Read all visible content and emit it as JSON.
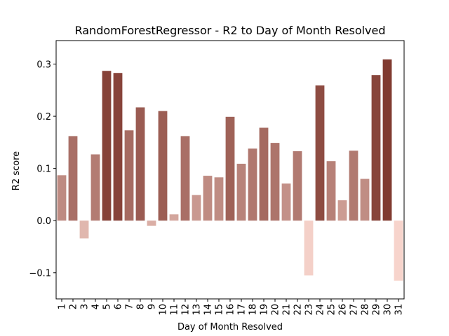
{
  "chart_data": {
    "type": "bar",
    "title": "RandomForestRegressor - R2 to Day of Month Resolved",
    "xlabel": "Day of Month Resolved",
    "ylabel": "R2 score",
    "ylim": [
      -0.15,
      0.345
    ],
    "yticks": [
      -0.1,
      0.0,
      0.1,
      0.2,
      0.3
    ],
    "ytick_labels": [
      "−0.1",
      "0.0",
      "0.1",
      "0.2",
      "0.3"
    ],
    "grid": false,
    "legend": "none",
    "categories": [
      "1",
      "2",
      "3",
      "4",
      "5",
      "6",
      "7",
      "8",
      "9",
      "10",
      "11",
      "12",
      "13",
      "14",
      "15",
      "16",
      "17",
      "18",
      "19",
      "20",
      "21",
      "22",
      "23",
      "24",
      "25",
      "26",
      "27",
      "28",
      "29",
      "30",
      "31"
    ],
    "values": [
      0.087,
      0.162,
      -0.034,
      0.127,
      0.287,
      0.283,
      0.173,
      0.217,
      -0.01,
      0.21,
      0.012,
      0.162,
      0.049,
      0.086,
      0.083,
      0.199,
      0.109,
      0.138,
      0.178,
      0.149,
      0.071,
      0.133,
      -0.105,
      0.259,
      0.114,
      0.039,
      0.134,
      0.08,
      0.279,
      0.309,
      -0.115
    ],
    "color_scale": {
      "low": "#f7d4cc",
      "high": "#803a30"
    }
  }
}
